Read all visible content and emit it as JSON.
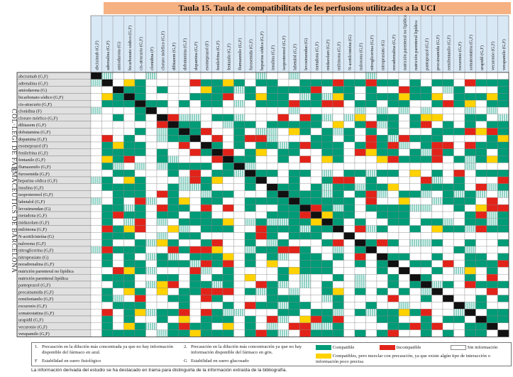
{
  "title": "Taula 15. Taula de compatibilitats de les perfusions utilitzades a la UCI",
  "side_text": "COL·LEGI DE FARMACÈUTICS DE BARCELONA",
  "logo_icon": "cofb-logo-icon",
  "drugs": [
    "abciximab (G,F)",
    "adrenalina (G,F)",
    "amiodarona (G)",
    "bicarbonato sódico (G,F)",
    "cis-atracurio (G,F)",
    "clonidina (F)",
    "cloruro mórfico (G,F)",
    "diltiazem (G,F)",
    "dobutamina (G,F)",
    "dopamina (G,F)",
    "esomeprazol (F)",
    "fenilefrina (G,F)",
    "fentanilo (G,F)",
    "flumazenilo (G,F)",
    "furosemida (G,F)",
    "heparina sódica (G,F)",
    "insulina (G,F)",
    "isoproterenol (G,F)",
    "labetalol (G,F)",
    "levosimendan (G)",
    "metadona (G,F)",
    "midazolam (G,F)",
    "milrinona (G,F)",
    "N-acetilcisteína (G)",
    "naloxona (G,F)",
    "nitroglicerina (G,F)",
    "nitroprusiato (G)",
    "noradrenalina (G,F)",
    "nutrición parenteral no lipídica",
    "nutrición parenteral lipídica",
    "pantoprazol (G,F)",
    "procainamida (G,F)",
    "remifentanilo (G,F)",
    "rocuronio (G,F)",
    "somatostatina (G,F)",
    "urapidil (G,F)",
    "vecuronio (G,F)",
    "verapamilo (G,F)"
  ],
  "legend": {
    "note1": "Precaución en la dilución más concentrada ya que no hay información disponible del fármaco en azul.",
    "note2": "Precaución en la dilución más concentración ya que no hay información disponible del fármaco en gris.",
    "noteF": "Estabilidad en suero fisiológico",
    "noteG": "Estabilidad en suero glucosado",
    "compatible": "Compatible",
    "incompatible": "Incompatible",
    "no_info": "Sin información",
    "caution": "Compatibles, pero mezclar con precaución, ya que existe algún tipo de interacción o información poco precisa",
    "key1": "1.",
    "key2": "2.",
    "keyF": "F",
    "keyG": "G"
  },
  "colors": {
    "compatible": "#009b77",
    "incompatible": "#e2231a",
    "caution": "#ffd200",
    "no_info": "#ffffff",
    "stripe": "#8fd3c6",
    "diagonal": "#111111",
    "header_bg": "#d9e8f5",
    "title_bg": "#f6b183",
    "label_bg": "#e0e0e0"
  },
  "footer": "La información derivada del estudio se ha destacado en trama para distinguirla de la información extraída de la bibliografía."
}
